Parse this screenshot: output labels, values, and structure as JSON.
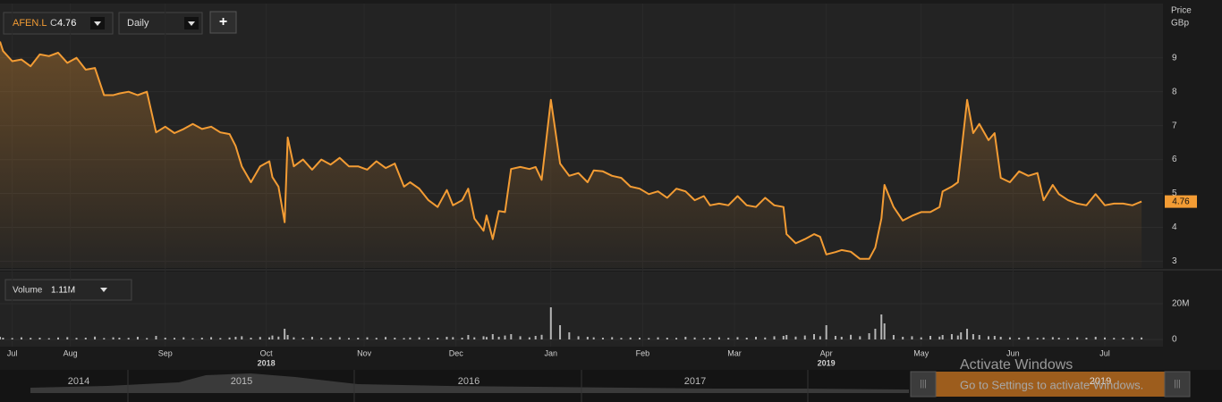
{
  "toolbar": {
    "symbol": "AFEN.L",
    "close_label": "C",
    "interval": "Daily",
    "add": "+"
  },
  "chart_data": [
    {
      "type": "line",
      "y_label": "Price",
      "y_unit": "GBp",
      "color": "#f39c34",
      "grid": true,
      "xlim": [
        0,
        380
      ],
      "ylim": [
        2.8,
        10.6
      ],
      "yticks": [
        3,
        4,
        5,
        6,
        7,
        8,
        9
      ],
      "xticks": [
        {
          "value": 4,
          "label": "Jul"
        },
        {
          "value": 23,
          "label": "Aug"
        },
        {
          "value": 54,
          "label": "Sep"
        },
        {
          "value": 87,
          "label": "Oct"
        },
        {
          "value": 119,
          "label": "Nov"
        },
        {
          "value": 149,
          "label": "Dec"
        },
        {
          "value": 180,
          "label": "Jan"
        },
        {
          "value": 210,
          "label": "Feb"
        },
        {
          "value": 240,
          "label": "Mar"
        },
        {
          "value": 270,
          "label": "Apr"
        },
        {
          "value": 301,
          "label": "May"
        },
        {
          "value": 331,
          "label": "Jun"
        },
        {
          "value": 361,
          "label": "Jul"
        }
      ],
      "year_ticks": [
        {
          "value": 87,
          "label": "2018"
        },
        {
          "value": 270,
          "label": "2019"
        }
      ],
      "x": [
        0,
        1,
        4,
        7,
        10,
        13,
        16,
        19,
        22,
        25,
        28,
        31,
        34,
        37,
        39,
        42,
        45,
        48,
        51,
        54,
        57,
        60,
        63,
        66,
        69,
        72,
        75,
        77,
        79,
        82,
        85,
        88,
        89,
        91,
        93,
        94,
        96,
        99,
        102,
        105,
        108,
        111,
        114,
        117,
        120,
        123,
        126,
        129,
        132,
        134,
        137,
        140,
        143,
        146,
        148,
        151,
        153,
        155,
        158,
        159,
        161,
        163,
        165,
        167,
        170,
        173,
        175,
        177,
        180,
        183,
        186,
        189,
        192,
        194,
        197,
        200,
        203,
        206,
        209,
        212,
        215,
        218,
        221,
        224,
        227,
        230,
        232,
        235,
        238,
        241,
        244,
        247,
        250,
        253,
        256,
        257,
        260,
        263,
        266,
        268,
        270,
        273,
        275,
        278,
        281,
        284,
        286,
        288,
        289,
        292,
        295,
        298,
        301,
        304,
        307,
        308,
        311,
        313,
        314,
        316,
        318,
        320,
        323,
        325,
        327,
        330,
        333,
        336,
        339,
        341,
        344,
        346,
        349,
        352,
        355,
        358,
        361,
        364,
        367,
        370,
        373
      ],
      "values": [
        9.48,
        9.2,
        8.9,
        8.95,
        8.75,
        9.1,
        9.05,
        9.15,
        8.85,
        9.0,
        8.65,
        8.7,
        7.9,
        7.9,
        7.95,
        8.0,
        7.9,
        8.0,
        6.8,
        6.97,
        6.78,
        6.9,
        7.05,
        6.9,
        6.97,
        6.8,
        6.75,
        6.4,
        5.8,
        5.33,
        5.8,
        5.95,
        5.48,
        5.2,
        4.15,
        6.65,
        5.8,
        6.0,
        5.7,
        6.0,
        5.85,
        6.05,
        5.8,
        5.8,
        5.7,
        5.95,
        5.75,
        5.88,
        5.2,
        5.33,
        5.14,
        4.8,
        4.6,
        5.1,
        4.65,
        4.8,
        5.14,
        4.26,
        3.9,
        4.35,
        3.65,
        4.48,
        4.45,
        5.72,
        5.78,
        5.72,
        5.78,
        5.4,
        7.76,
        5.88,
        5.52,
        5.6,
        5.33,
        5.68,
        5.65,
        5.52,
        5.46,
        5.2,
        5.14,
        4.98,
        5.06,
        4.87,
        5.14,
        5.06,
        4.8,
        4.92,
        4.65,
        4.7,
        4.65,
        4.92,
        4.65,
        4.6,
        4.87,
        4.65,
        4.6,
        3.8,
        3.53,
        3.65,
        3.8,
        3.72,
        3.2,
        3.27,
        3.33,
        3.28,
        3.07,
        3.07,
        3.4,
        4.26,
        5.25,
        4.6,
        4.2,
        4.34,
        4.45,
        4.45,
        4.6,
        5.06,
        5.2,
        5.33,
        6.12,
        7.76,
        6.78,
        7.05,
        6.57,
        6.78,
        5.46,
        5.33,
        5.65,
        5.52,
        5.6,
        4.8,
        5.25,
        4.98,
        4.8,
        4.7,
        4.65,
        4.98,
        4.65,
        4.7,
        4.7,
        4.65,
        4.76
      ]
    },
    {
      "type": "bar",
      "label": "Volume",
      "current": "1.11M",
      "color": "#b5b5b5",
      "ylim": [
        0,
        38000000
      ],
      "yticks": [
        0,
        {
          "value": 20000000,
          "label": "20M"
        }
      ],
      "values": [
        1500000,
        1000000,
        800000,
        1200000,
        900000,
        1000000,
        700000,
        1100000,
        1300000,
        900000,
        1000000,
        1600000,
        800000,
        1200000,
        1000000,
        900000,
        1500000,
        800000,
        2000000,
        1000000,
        900000,
        1200000,
        700000,
        1000000,
        1300000,
        800000,
        1100000,
        1500000,
        1800000,
        1000000,
        1400000,
        1200000,
        2200000,
        1600000,
        6000000,
        2500000,
        1200000,
        1000000,
        1500000,
        900000,
        1100000,
        1300000,
        800000,
        1000000,
        1200000,
        900000,
        1400000,
        1000000,
        800000,
        1100000,
        1200000,
        900000,
        1000000,
        1500000,
        1300000,
        1000000,
        2500000,
        1200000,
        1800000,
        1400000,
        3000000,
        1500000,
        2200000,
        3000000,
        1800000,
        1200000,
        2000000,
        2600000,
        18000000,
        8000000,
        4000000,
        1800000,
        1500000,
        1200000,
        1000000,
        1300000,
        900000,
        1100000,
        1000000,
        800000,
        1200000,
        1000000,
        900000,
        1500000,
        1100000,
        800000,
        1000000,
        1200000,
        900000,
        1300000,
        1000000,
        1500000,
        1100000,
        1800000,
        2000000,
        2500000,
        1600000,
        2200000,
        3000000,
        1800000,
        8000000,
        2000000,
        1500000,
        2600000,
        1800000,
        3500000,
        6000000,
        14000000,
        9000000,
        2500000,
        1500000,
        1800000,
        1200000,
        2000000,
        1600000,
        2500000,
        3000000,
        2200000,
        4000000,
        6000000,
        3000000,
        2500000,
        1800000,
        2000000,
        1500000,
        1200000,
        1000000,
        1500000,
        900000,
        1100000,
        1300000,
        1000000,
        800000,
        1200000,
        1000000,
        1500000,
        1100000,
        900000,
        1000000,
        1200000,
        1100000
      ]
    }
  ],
  "navigator": {
    "years": [
      "2014",
      "2015",
      "2016",
      "2017",
      "2019"
    ]
  },
  "watermark": {
    "title": "Activate Windows",
    "subtitle": "Go to Settings to activate Windows."
  }
}
